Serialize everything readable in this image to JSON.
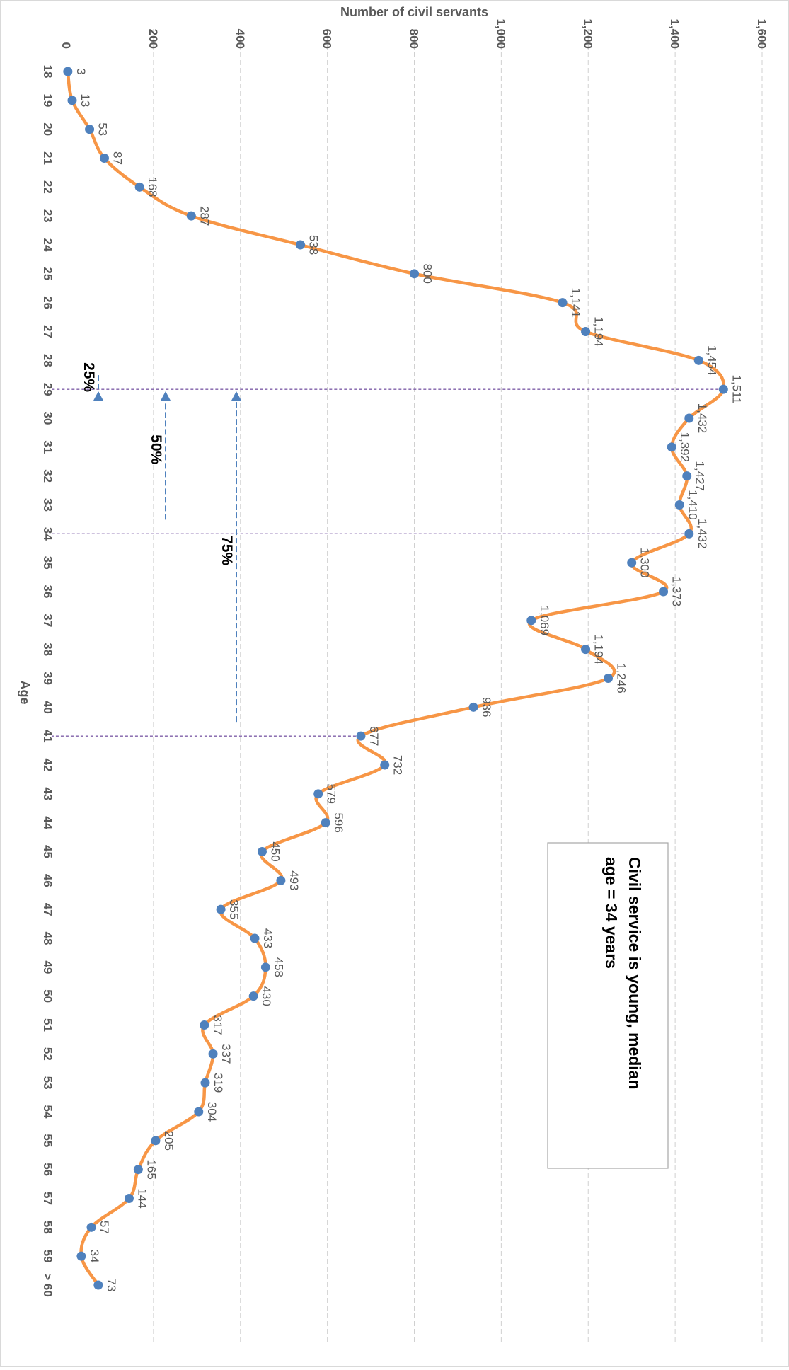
{
  "chart_data": {
    "type": "line",
    "orientation": "rotated 90 degrees clockwise",
    "xlabel": "Age",
    "ylabel": "Number of civil servants",
    "categories": [
      "18",
      "19",
      "20",
      "21",
      "22",
      "23",
      "24",
      "25",
      "26",
      "27",
      "28",
      "29",
      "30",
      "31",
      "32",
      "33",
      "34",
      "35",
      "36",
      "37",
      "38",
      "39",
      "40",
      "41",
      "42",
      "43",
      "44",
      "45",
      "46",
      "47",
      "48",
      "49",
      "50",
      "51",
      "52",
      "53",
      "54",
      "55",
      "56",
      "57",
      "58",
      "59",
      "> 60"
    ],
    "values": [
      3,
      13,
      53,
      87,
      168,
      287,
      538,
      800,
      1141,
      1194,
      1454,
      1511,
      1432,
      1392,
      1427,
      1410,
      1432,
      1300,
      1373,
      1069,
      1194,
      1246,
      936,
      677,
      732,
      579,
      596,
      450,
      493,
      355,
      433,
      458,
      430,
      317,
      337,
      319,
      304,
      205,
      165,
      144,
      57,
      34,
      73
    ],
    "data_labels": [
      "3",
      "13",
      "53",
      "87",
      "168",
      "287",
      "538",
      "800",
      "1,141",
      "1,194",
      "1,454",
      "1,511",
      "1,432",
      "1,392",
      "1,427",
      "1,410",
      "1,432",
      "1,300",
      "1,373",
      "1,069",
      "1,194",
      "1,246",
      "936",
      "677",
      "732",
      "579",
      "596",
      "450",
      "493",
      "355",
      "433",
      "458",
      "430",
      "317",
      "337",
      "319",
      "304",
      "205",
      "165",
      "144",
      "57",
      "34",
      "73"
    ],
    "ylim": [
      0,
      1600
    ],
    "yticks": [
      0,
      200,
      400,
      600,
      800,
      1000,
      1200,
      1400,
      1600
    ],
    "ytick_labels": [
      "0",
      "200",
      "400",
      "600",
      "800",
      "1,000",
      "1,200",
      "1,400",
      "1,600"
    ],
    "grid": true,
    "colors": {
      "line": "#f79646",
      "marker": "#4f81bd",
      "arrow": "#4f81bd",
      "marker_line": "#7f5fa8",
      "grid": "#d0d0d0",
      "axis_text": "#595959"
    },
    "annotation": "Civil service is young, median age = 34 years",
    "percentile_markers": [
      {
        "label": "25%",
        "age": "29"
      },
      {
        "label": "50%",
        "age": "34"
      },
      {
        "label": "75%",
        "age": "41"
      }
    ]
  }
}
